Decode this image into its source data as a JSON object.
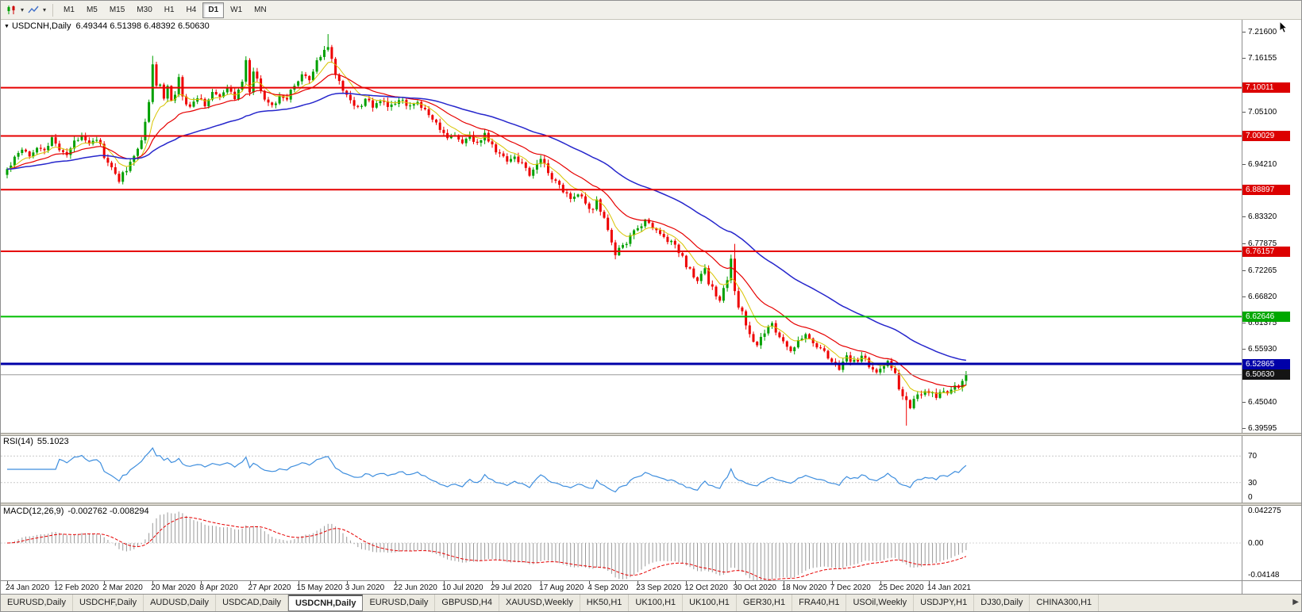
{
  "toolbar": {
    "chart_type_icon": "candlestick-chart",
    "indicator_icon": "line-chart",
    "dropdown_icon": "▾",
    "timeframes": [
      "M1",
      "M5",
      "M15",
      "M30",
      "H1",
      "H4",
      "D1",
      "W1",
      "MN"
    ],
    "active_timeframe": "D1"
  },
  "chart": {
    "collapse_icon": "▼",
    "title": "USDCNH,Daily",
    "ohlc": "6.49344 6.51398 6.48392 6.50630"
  },
  "price_axis": {
    "ticks": [
      "7.21600",
      "7.16155",
      "7.05100",
      "6.94210",
      "6.83320",
      "6.77875",
      "6.72265",
      "6.66820",
      "6.61375",
      "6.55930",
      "6.45040",
      "6.39595"
    ]
  },
  "time_axis": {
    "labels": [
      "24 Jan 2020",
      "12 Feb 2020",
      "2 Mar 2020",
      "20 Mar 2020",
      "8 Apr 2020",
      "27 Apr 2020",
      "15 May 2020",
      "3 Jun 2020",
      "22 Jun 2020",
      "10 Jul 2020",
      "29 Jul 2020",
      "17 Aug 2020",
      "4 Sep 2020",
      "23 Sep 2020",
      "12 Oct 2020",
      "30 Oct 2020",
      "18 Nov 2020",
      "7 Dec 2020",
      "25 Dec 2020",
      "14 Jan 2021"
    ]
  },
  "rsi": {
    "label": "RSI(14)",
    "value": "55.1023",
    "axis_labels": [
      "70",
      "30",
      "0"
    ],
    "levels": [
      70,
      30
    ],
    "color": "#3E8EDE"
  },
  "macd": {
    "label": "MACD(12,26,9)",
    "value": "-0.002762 -0.008294",
    "axis_labels": [
      "0.042275",
      "0.00",
      "-0.04148"
    ],
    "range": [
      -0.0455,
      0.0455
    ],
    "hist_color": "#999999",
    "signal_color": "#E60000"
  },
  "tabs": {
    "items": [
      "EURUSD,Daily",
      "USDCHF,Daily",
      "AUDUSD,Daily",
      "USDCAD,Daily",
      "USDCNH,Daily",
      "EURUSD,Daily",
      "GBPUSD,H4",
      "XAUUSD,Weekly",
      "HK50,H1",
      "UK100,H1",
      "UK100,H1",
      "GER30,H1",
      "FRA40,H1",
      "USOil,Weekly",
      "USDJPY,H1",
      "DJ30,Daily",
      "CHINA300,H1"
    ],
    "active_index": 4,
    "scroll_right_icon": "▶"
  },
  "chart_data": {
    "type": "candlestick",
    "symbol": "USDCNH",
    "period": "Daily",
    "last_candle": {
      "open": 6.49344,
      "high": 6.51398,
      "low": 6.48392,
      "close": 6.5063
    },
    "price_range": [
      6.386,
      7.2405
    ],
    "candle_count": 258,
    "candles_per_label": 13,
    "colors": {
      "up": "#00A000",
      "down": "#EE0000"
    },
    "close_path": [
      [
        0,
        6.93
      ],
      [
        2,
        6.958
      ],
      [
        4,
        6.976
      ],
      [
        6,
        6.962
      ],
      [
        8,
        6.978
      ],
      [
        10,
        6.97
      ],
      [
        12,
        6.992
      ],
      [
        14,
        6.975
      ],
      [
        16,
        6.962
      ],
      [
        18,
        6.986
      ],
      [
        20,
        7.001
      ],
      [
        22,
        6.988
      ],
      [
        24,
        6.996
      ],
      [
        26,
        6.958
      ],
      [
        28,
        6.93
      ],
      [
        30,
        6.91
      ],
      [
        32,
        6.932
      ],
      [
        34,
        6.956
      ],
      [
        36,
        6.996
      ],
      [
        38,
        7.068
      ],
      [
        39,
        7.14
      ],
      [
        40,
        7.1
      ],
      [
        41,
        7.118
      ],
      [
        42,
        7.076
      ],
      [
        43,
        7.102
      ],
      [
        44,
        7.062
      ],
      [
        45,
        7.09
      ],
      [
        46,
        7.112
      ],
      [
        47,
        7.08
      ],
      [
        49,
        7.058
      ],
      [
        51,
        7.082
      ],
      [
        53,
        7.068
      ],
      [
        55,
        7.09
      ],
      [
        57,
        7.078
      ],
      [
        59,
        7.096
      ],
      [
        61,
        7.082
      ],
      [
        63,
        7.12
      ],
      [
        64,
        7.145
      ],
      [
        65,
        7.102
      ],
      [
        66,
        7.128
      ],
      [
        67,
        7.112
      ],
      [
        69,
        7.08
      ],
      [
        71,
        7.062
      ],
      [
        73,
        7.088
      ],
      [
        75,
        7.072
      ],
      [
        77,
        7.108
      ],
      [
        79,
        7.128
      ],
      [
        81,
        7.112
      ],
      [
        83,
        7.15
      ],
      [
        85,
        7.178
      ],
      [
        86,
        7.192
      ],
      [
        87,
        7.158
      ],
      [
        88,
        7.122
      ],
      [
        90,
        7.098
      ],
      [
        92,
        7.07
      ],
      [
        94,
        7.056
      ],
      [
        96,
        7.078
      ],
      [
        98,
        7.06
      ],
      [
        100,
        7.076
      ],
      [
        102,
        7.058
      ],
      [
        104,
        7.068
      ],
      [
        106,
        7.076
      ],
      [
        108,
        7.058
      ],
      [
        110,
        7.072
      ],
      [
        112,
        7.052
      ],
      [
        114,
        7.035
      ],
      [
        116,
        7.012
      ],
      [
        118,
        6.995
      ],
      [
        120,
        7.003
      ],
      [
        122,
        6.986
      ],
      [
        124,
        6.998
      ],
      [
        126,
        6.985
      ],
      [
        128,
        7.005
      ],
      [
        130,
        6.978
      ],
      [
        132,
        6.962
      ],
      [
        134,
        6.948
      ],
      [
        136,
        6.958
      ],
      [
        138,
        6.942
      ],
      [
        140,
        6.922
      ],
      [
        142,
        6.938
      ],
      [
        143,
        6.955
      ],
      [
        145,
        6.93
      ],
      [
        147,
        6.905
      ],
      [
        149,
        6.888
      ],
      [
        151,
        6.872
      ],
      [
        153,
        6.882
      ],
      [
        155,
        6.858
      ],
      [
        156,
        6.845
      ],
      [
        158,
        6.862
      ],
      [
        160,
        6.822
      ],
      [
        162,
        6.785
      ],
      [
        163,
        6.756
      ],
      [
        165,
        6.772
      ],
      [
        167,
        6.792
      ],
      [
        169,
        6.808
      ],
      [
        171,
        6.826
      ],
      [
        173,
        6.812
      ],
      [
        175,
        6.798
      ],
      [
        177,
        6.786
      ],
      [
        179,
        6.772
      ],
      [
        181,
        6.748
      ],
      [
        183,
        6.722
      ],
      [
        185,
        6.7
      ],
      [
        187,
        6.718
      ],
      [
        189,
        6.682
      ],
      [
        191,
        6.662
      ],
      [
        193,
        6.705
      ],
      [
        194,
        6.742
      ],
      [
        195,
        6.672
      ],
      [
        197,
        6.63
      ],
      [
        199,
        6.598
      ],
      [
        201,
        6.565
      ],
      [
        203,
        6.592
      ],
      [
        205,
        6.612
      ],
      [
        207,
        6.585
      ],
      [
        208,
        6.572
      ],
      [
        210,
        6.558
      ],
      [
        212,
        6.578
      ],
      [
        214,
        6.588
      ],
      [
        216,
        6.572
      ],
      [
        218,
        6.562
      ],
      [
        220,
        6.545
      ],
      [
        221,
        6.532
      ],
      [
        223,
        6.522
      ],
      [
        225,
        6.542
      ],
      [
        227,
        6.532
      ],
      [
        229,
        6.545
      ],
      [
        231,
        6.525
      ],
      [
        233,
        6.512
      ],
      [
        234,
        6.522
      ],
      [
        236,
        6.532
      ],
      [
        238,
        6.512
      ],
      [
        240,
        6.462
      ],
      [
        242,
        6.438
      ],
      [
        243,
        6.452
      ],
      [
        245,
        6.468
      ],
      [
        247,
        6.472
      ],
      [
        249,
        6.458
      ],
      [
        251,
        6.472
      ],
      [
        253,
        6.468
      ],
      [
        254,
        6.482
      ],
      [
        255,
        6.478
      ],
      [
        256,
        6.4934
      ],
      [
        257,
        6.5063
      ]
    ],
    "overrides": [
      {
        "i": 39,
        "h": 7.166
      },
      {
        "i": 86,
        "h": 7.211
      },
      {
        "i": 195,
        "h": 6.777
      },
      {
        "i": 241,
        "l": 6.401
      },
      {
        "i": 256,
        "c": 6.49344
      },
      {
        "i": 257,
        "o": 6.49344,
        "h": 6.51398,
        "l": 6.48392,
        "c": 6.5063
      }
    ],
    "moving_averages": [
      {
        "name": "ma-fast-yellow",
        "period": 8,
        "color": "#D8C400",
        "width": 1
      },
      {
        "name": "ma-mid-red",
        "period": 20,
        "color": "#E60000",
        "width": 1.2
      },
      {
        "name": "ma-slow-blue",
        "period": 55,
        "color": "#2626CC",
        "width": 1.5
      }
    ],
    "levels": [
      {
        "name": "resistance-1",
        "value": 7.10011,
        "label": "7.10011",
        "color": "#E60000",
        "width": 2,
        "badge": "#DC0000"
      },
      {
        "name": "resistance-2",
        "value": 7.00029,
        "label": "7.00029",
        "color": "#E60000",
        "width": 2,
        "badge": "#DC0000"
      },
      {
        "name": "resistance-3",
        "value": 6.88897,
        "label": "6.88897",
        "color": "#E60000",
        "width": 2,
        "badge": "#DC0000"
      },
      {
        "name": "resistance-4",
        "value": 6.76157,
        "label": "6.76157",
        "color": "#E60000",
        "width": 2,
        "badge": "#DC0000"
      },
      {
        "name": "support-green",
        "value": 6.62646,
        "label": "6.62646",
        "color": "#00BE00",
        "width": 2,
        "badge": "#00A800"
      },
      {
        "name": "support-blue",
        "value": 6.52865,
        "label": "6.52865",
        "color": "#0000A8",
        "width": 3,
        "badge": "#0000A8"
      },
      {
        "name": "current-price",
        "value": 6.5063,
        "label": "6.50630",
        "color": "#9a9a9a",
        "width": 1,
        "badge": "#141414"
      }
    ]
  }
}
